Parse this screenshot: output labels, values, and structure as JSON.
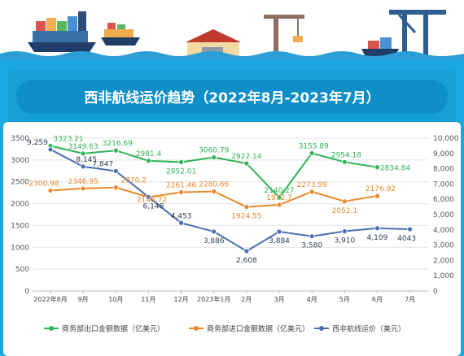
{
  "header": {
    "title": "西非航线运价趋势（2022年8月-2023年7月）"
  },
  "colors": {
    "export": "#2fb355",
    "import": "#e8882a",
    "freight": "#4a6fb5",
    "panel": "#1ba7df",
    "title_bar": "#0e8fc8",
    "wave": "#2a9fd6"
  },
  "chart_data": {
    "type": "line",
    "categories": [
      "2022年8月",
      "9月",
      "10月",
      "11月",
      "12月",
      "2023年1月",
      "2月",
      "3月",
      "4月",
      "5月",
      "6月",
      "7月"
    ],
    "left_axis": {
      "ylim": [
        0,
        3500
      ],
      "ticks": [
        "0",
        "500",
        "1000",
        "1500",
        "2000",
        "2500",
        "3000",
        "3500"
      ]
    },
    "right_axis": {
      "ylim": [
        0,
        10000
      ],
      "ticks": [
        "0",
        "1,000",
        "2,000",
        "3,000",
        "4,000",
        "5,000",
        "6,000",
        "7,000",
        "8,000",
        "9,000",
        "10,000"
      ]
    },
    "series": [
      {
        "name": "商务部出口金额数据（亿美元）",
        "axis": "left",
        "values": [
          3323.21,
          3149.63,
          3216.69,
          2981.4,
          2952.01,
          3060.79,
          2922.14,
          2140.27,
          3155.89,
          2954.18,
          2834.84,
          null
        ],
        "labels": [
          "3323.21",
          "3149.63",
          "3216.69",
          "2981.4",
          "2952.01",
          "3060.79",
          "2922.14",
          "2140.27",
          "3155.89",
          "2954.18",
          "2834.84",
          ""
        ]
      },
      {
        "name": "商务部进口金额数据（亿美元）",
        "axis": "left",
        "values": [
          2300.98,
          2346.95,
          2370.2,
          2148.72,
          2261.46,
          2280.66,
          1924.55,
          1972.7,
          2273.99,
          2052.1,
          2176.92,
          null
        ],
        "labels": [
          "2300.98",
          "2346.95",
          "2370.2",
          "2148.72",
          "2261.46",
          "2280.66",
          "1924.55",
          "1972.7",
          "2273.99",
          "2052.1",
          "2176.92",
          ""
        ]
      },
      {
        "name": "西非航线运价（美元）",
        "axis": "right",
        "values": [
          9259,
          8145,
          7847,
          6148,
          4453,
          3886,
          2608,
          3884,
          3580,
          3910,
          4109,
          4043
        ],
        "labels": [
          "9,259",
          "8,145",
          "7,847",
          "6,148",
          "4,453",
          "3,886",
          "2,608",
          "3,884",
          "3,580",
          "3,910",
          "4,109",
          "4043"
        ]
      }
    ],
    "grid": "horizontal"
  }
}
